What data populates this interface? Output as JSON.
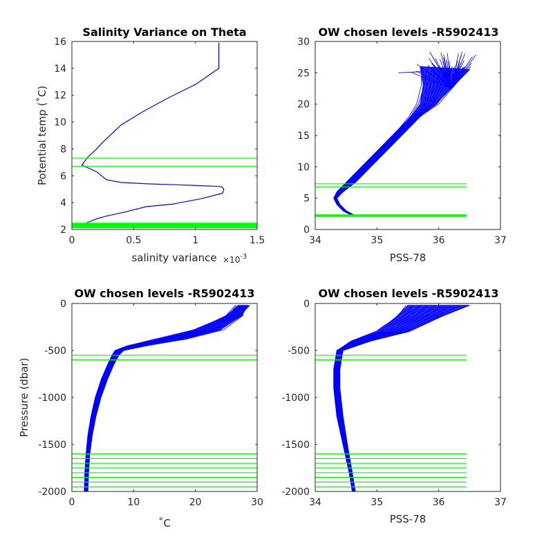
{
  "colors": {
    "profile": "#0000ff",
    "level": "#00ff00",
    "axis": "#262626"
  },
  "chart_data": [
    {
      "type": "line",
      "title": "Salinity Variance on Theta",
      "xlabel": "salinity variance",
      "x_exponent": "×10",
      "x_exponent_power": "-3",
      "ylabel": "Potential temp (˚C)",
      "xlim": [
        0,
        1.5
      ],
      "ylim": [
        2,
        16
      ],
      "xticks": [
        "0",
        "0.5",
        "1",
        "1.5"
      ],
      "yticks": [
        "2",
        "4",
        "6",
        "8",
        "10",
        "12",
        "14",
        "16"
      ],
      "series": [
        {
          "kind": "line",
          "x": [
            0.09,
            0.12,
            0.2,
            0.28,
            0.43,
            0.6,
            0.82,
            1.05,
            1.22,
            1.23,
            1.21,
            0.94,
            0.61,
            0.4,
            0.28,
            0.24,
            0.2,
            0.08,
            0.13,
            0.2,
            0.25,
            0.4,
            0.58,
            0.78,
            1.0,
            1.19,
            1.19
          ],
          "y": [
            2.3,
            2.5,
            2.8,
            3.0,
            3.3,
            3.7,
            3.9,
            4.3,
            4.7,
            5.0,
            5.2,
            5.3,
            5.4,
            5.5,
            5.7,
            6.0,
            6.3,
            6.8,
            7.4,
            8.0,
            8.5,
            9.8,
            10.8,
            11.8,
            12.8,
            14.0,
            15.9
          ]
        }
      ],
      "hlines": [
        6.7,
        7.3
      ],
      "hband": [
        2.1,
        2.5
      ]
    },
    {
      "type": "line",
      "title": "OW chosen levels -R5902413",
      "xlabel": "PSS-78",
      "ylabel": "",
      "xlim": [
        34,
        37
      ],
      "ylim": [
        0,
        30
      ],
      "xticks": [
        "34",
        "35",
        "36",
        "37"
      ],
      "yticks": [
        "0",
        "5",
        "10",
        "15",
        "20",
        "25",
        "30"
      ],
      "profile_envelope": {
        "lower": {
          "x": [
            34.6,
            34.45,
            34.35,
            34.3,
            34.35,
            34.5,
            34.7,
            34.95,
            35.15,
            35.35,
            35.55,
            35.7,
            35.75,
            35.7
          ],
          "y": [
            2.2,
            3.0,
            4.0,
            5.0,
            6.0,
            7.5,
            9.5,
            12.0,
            14.0,
            16.0,
            18.0,
            20.0,
            23.0,
            26.0
          ]
        },
        "upper": {
          "x": [
            34.65,
            34.5,
            34.4,
            34.35,
            34.45,
            34.65,
            34.85,
            35.1,
            35.3,
            35.5,
            35.7,
            35.95,
            36.2,
            36.5
          ],
          "y": [
            2.2,
            3.0,
            4.0,
            5.0,
            6.0,
            7.5,
            9.5,
            12.0,
            14.0,
            16.0,
            18.0,
            20.0,
            22.5,
            25.5
          ]
        },
        "surface_y": [
          25.0,
          28.5
        ]
      },
      "hlines": [
        6.8,
        7.3
      ],
      "hband": [
        2.0,
        2.4
      ],
      "hline_xrange": [
        34,
        36.45
      ]
    },
    {
      "type": "line",
      "title": "OW chosen levels -R5902413",
      "xlabel": "˚C",
      "ylabel": "Pressure (dbar)",
      "xlim": [
        0,
        30
      ],
      "ylim": [
        -2000,
        0
      ],
      "xticks": [
        "0",
        "10",
        "20",
        "30"
      ],
      "yticks": [
        "0",
        "-500",
        "-1000",
        "-1500",
        "-2000"
      ],
      "profile_envelope": {
        "lower": {
          "x": [
            2.0,
            2.1,
            2.3,
            2.6,
            3.1,
            3.8,
            4.8,
            5.8,
            6.5,
            7.0,
            9.0,
            14.0,
            20.0,
            25.0,
            27.0
          ],
          "y": [
            -2000,
            -1800,
            -1600,
            -1400,
            -1200,
            -1000,
            -800,
            -650,
            -550,
            -500,
            -450,
            -380,
            -280,
            -130,
            -20
          ]
        },
        "upper": {
          "x": [
            2.6,
            2.7,
            2.9,
            3.3,
            3.9,
            4.7,
            5.8,
            6.8,
            7.6,
            8.4,
            12.0,
            18.0,
            24.0,
            27.5,
            28.5
          ],
          "y": [
            -2000,
            -1800,
            -1600,
            -1400,
            -1200,
            -1000,
            -800,
            -650,
            -550,
            -500,
            -450,
            -380,
            -280,
            -130,
            -20
          ]
        }
      },
      "hlines": [
        -550,
        -600,
        -1600,
        -1650,
        -1700,
        -1750,
        -1800,
        -1850,
        -1900,
        -1950
      ],
      "hline_xrange": [
        0,
        30
      ]
    },
    {
      "type": "line",
      "title": "OW chosen levels -R5902413",
      "xlabel": "PSS-78",
      "ylabel": "",
      "xlim": [
        34,
        37
      ],
      "ylim": [
        -2000,
        0
      ],
      "xticks": [
        "34",
        "35",
        "36",
        "37"
      ],
      "yticks": [
        "0",
        "-500",
        "-1000",
        "-1500",
        "-2000"
      ],
      "profile_envelope": {
        "lower": {
          "x": [
            34.6,
            34.55,
            34.45,
            34.35,
            34.3,
            34.3,
            34.35,
            34.6,
            35.0,
            35.3,
            35.5
          ],
          "y": [
            -2000,
            -1800,
            -1500,
            -1200,
            -900,
            -700,
            -500,
            -400,
            -300,
            -150,
            -20
          ]
        },
        "upper": {
          "x": [
            34.65,
            34.6,
            34.52,
            34.45,
            34.4,
            34.4,
            34.45,
            34.9,
            35.5,
            36.0,
            36.5
          ],
          "y": [
            -2000,
            -1800,
            -1500,
            -1200,
            -900,
            -700,
            -500,
            -400,
            -300,
            -150,
            -20
          ]
        }
      },
      "hlines": [
        -550,
        -600,
        -1600,
        -1650,
        -1700,
        -1750,
        -1800,
        -1850,
        -1900,
        -1950
      ],
      "hline_xrange": [
        34,
        36.45
      ]
    }
  ]
}
